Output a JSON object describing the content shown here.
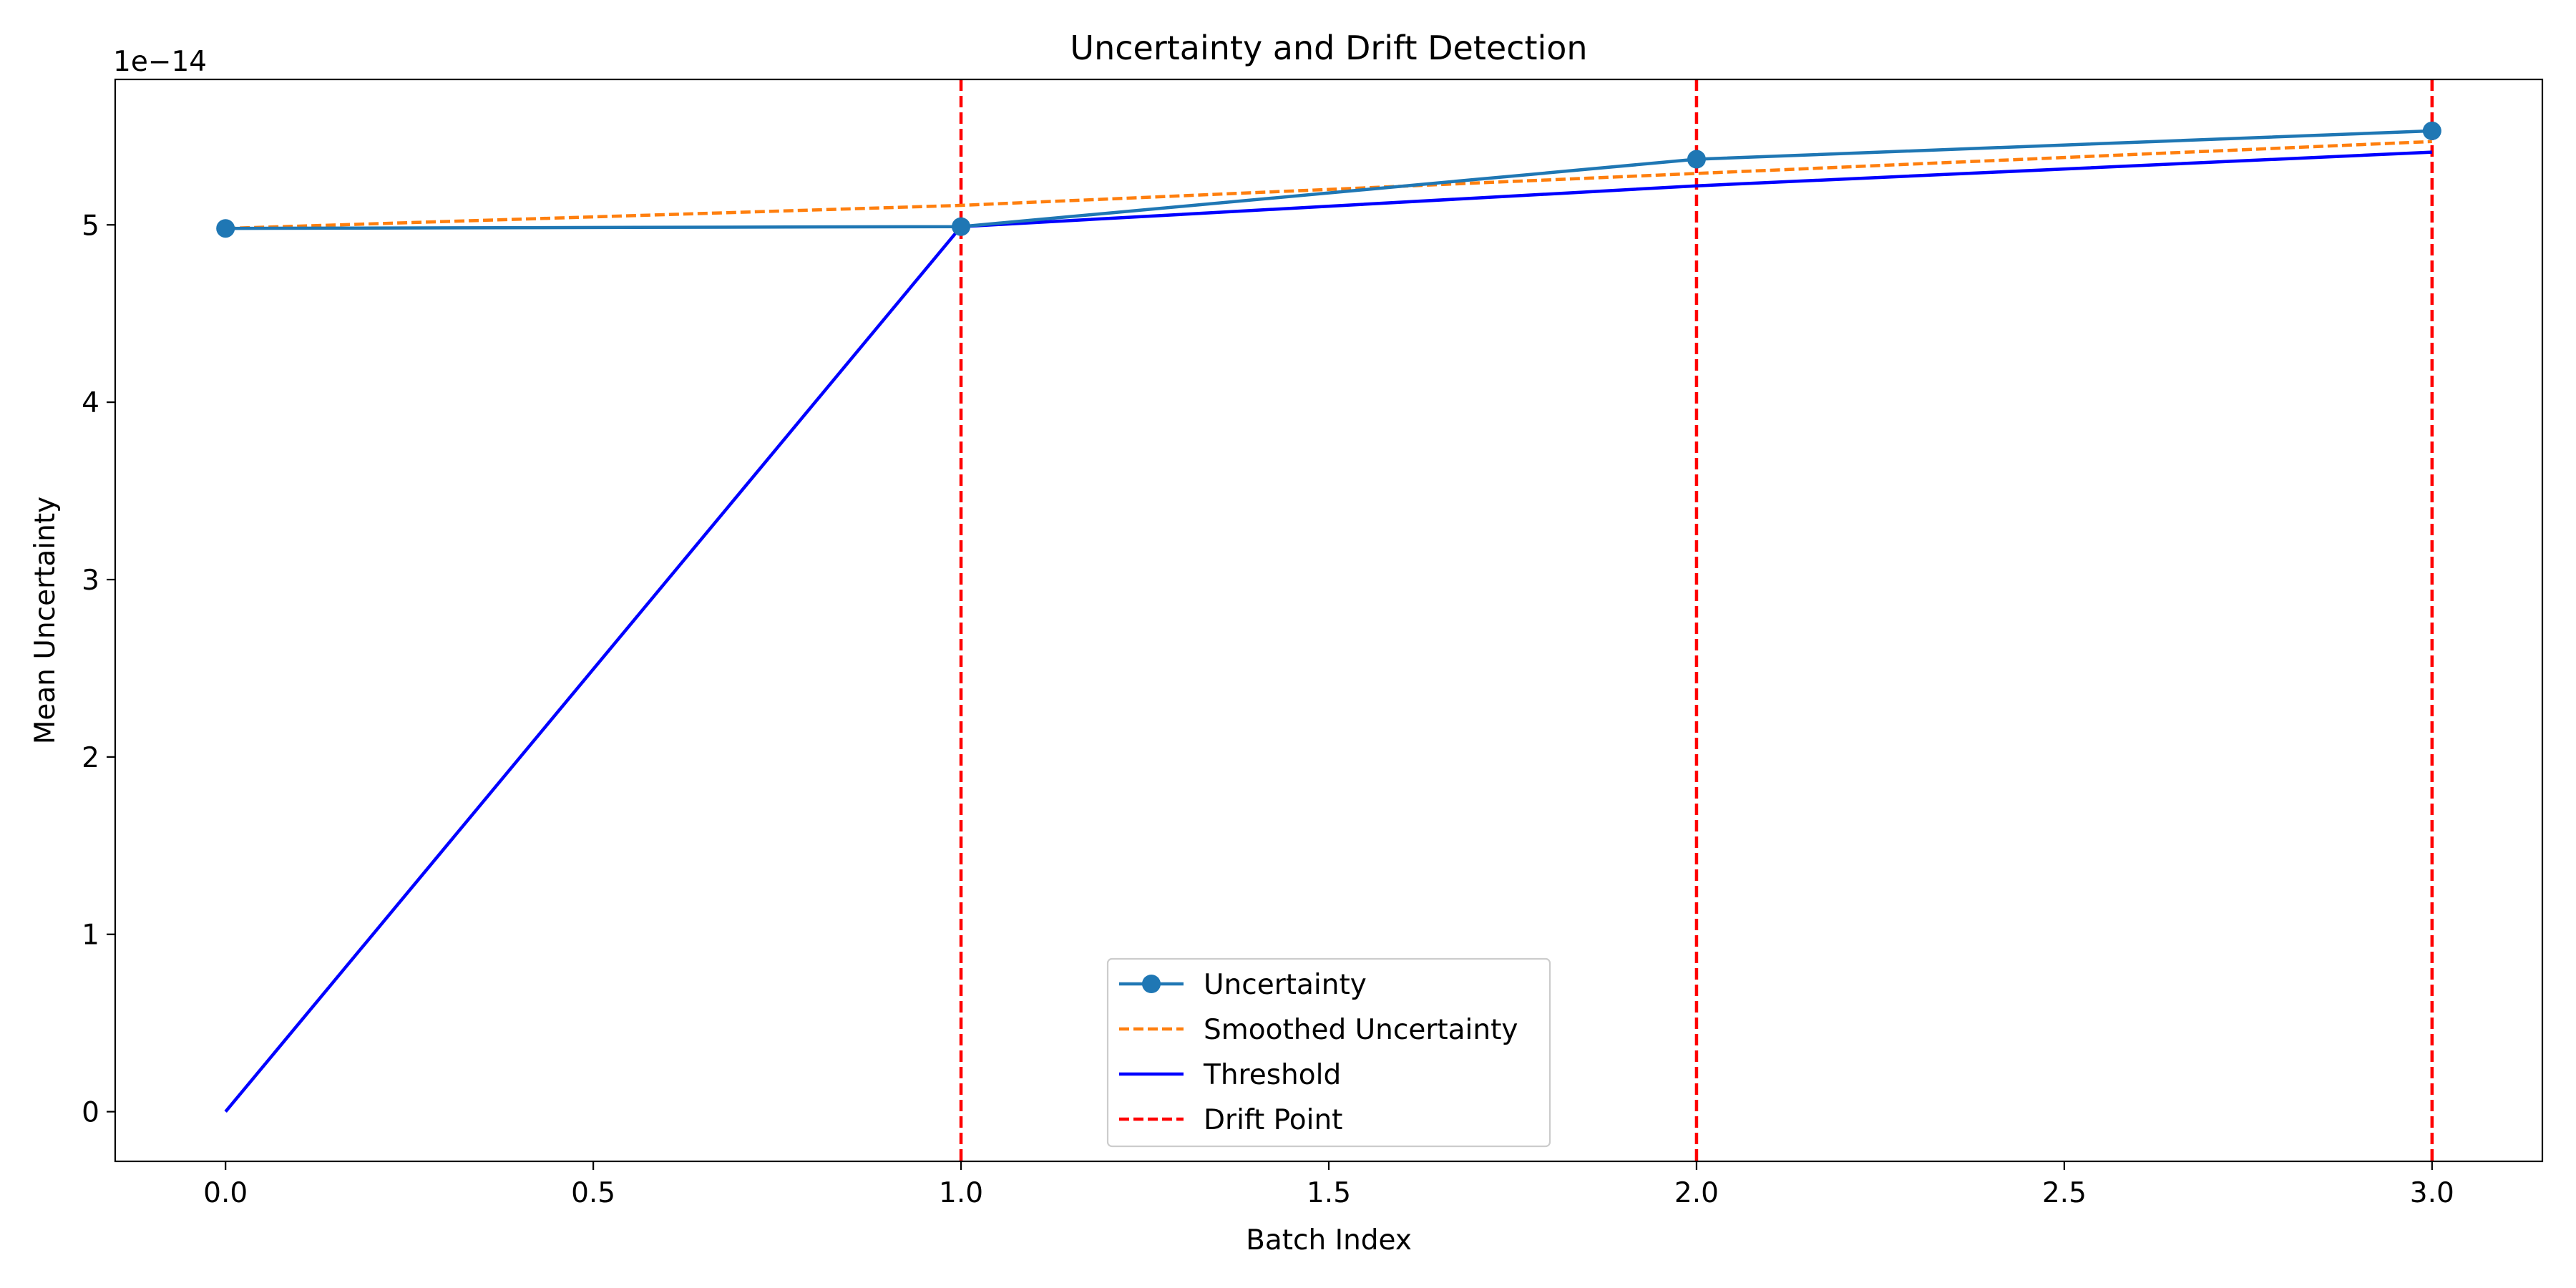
{
  "chart_data": {
    "type": "line",
    "title": "Uncertainty and Drift Detection",
    "xlabel": "Batch Index",
    "ylabel": "Mean Uncertainty",
    "y_offset_label": "1e−14",
    "xlim": [
      -0.15,
      3.15
    ],
    "ylim": [
      -0.28,
      5.82
    ],
    "y_scale_exponent": -14,
    "x_ticks": [
      0.0,
      0.5,
      1.0,
      1.5,
      2.0,
      2.5,
      3.0
    ],
    "x_tick_labels": [
      "0.0",
      "0.5",
      "1.0",
      "1.5",
      "2.0",
      "2.5",
      "3.0"
    ],
    "y_ticks": [
      0,
      1,
      2,
      3,
      4,
      5
    ],
    "y_tick_labels": [
      "0",
      "1",
      "2",
      "3",
      "4",
      "5"
    ],
    "grid": false,
    "legend_position": "lower-center",
    "series": [
      {
        "name": "Uncertainty",
        "x": [
          0,
          1,
          2,
          3
        ],
        "values": [
          4.98,
          4.99,
          5.37,
          5.53
        ],
        "color": "#1f77b4",
        "style": "solid",
        "marker": "circle"
      },
      {
        "name": "Smoothed Uncertainty",
        "x": [
          0,
          1,
          2,
          3
        ],
        "values": [
          4.98,
          5.11,
          5.29,
          5.47
        ],
        "color": "#ff7f0e",
        "style": "dashed",
        "marker": "none"
      },
      {
        "name": "Threshold",
        "x": [
          0,
          1,
          2,
          3
        ],
        "values": [
          0.0,
          4.99,
          5.22,
          5.41
        ],
        "color": "#0000ff",
        "style": "solid",
        "marker": "none"
      }
    ],
    "drift_points": {
      "name": "Drift Point",
      "x": [
        1,
        2,
        3
      ],
      "color": "#ff0000",
      "style": "dashed"
    }
  }
}
